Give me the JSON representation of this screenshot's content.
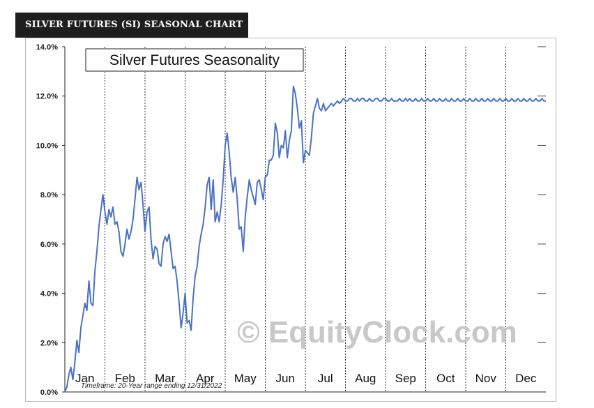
{
  "page": {
    "header": "SILVER FUTURES (SI) SEASONAL CHART"
  },
  "chart_data": {
    "type": "line",
    "title": "Silver Futures Seasonality",
    "watermark": "© EquityClock.com",
    "footnote": "Timeframe: 20-Year range ending 12/31/2022",
    "xlabel": "",
    "ylabel": "",
    "ylim": [
      0,
      14
    ],
    "yticks": [
      "0.0%",
      "2.0%",
      "4.0%",
      "6.0%",
      "8.0%",
      "10.0%",
      "12.0%",
      "14.0%"
    ],
    "months": [
      "Jan",
      "Feb",
      "Mar",
      "Apr",
      "May",
      "Jun",
      "Jul",
      "Aug",
      "Sep",
      "Oct",
      "Nov",
      "Dec"
    ],
    "grid": "vertical dashed at month boundaries",
    "line_color": "#4a72c4",
    "series": [
      {
        "x": [
          0.0,
          0.05,
          0.1,
          0.15,
          0.2,
          0.25,
          0.3,
          0.35,
          0.4,
          0.45,
          0.5,
          0.55,
          0.6,
          0.65,
          0.7,
          0.75,
          0.8,
          0.85,
          0.9,
          0.95,
          1.0,
          1.05,
          1.1,
          1.15,
          1.2,
          1.25,
          1.3,
          1.35,
          1.4,
          1.45,
          1.5,
          1.55,
          1.6,
          1.65,
          1.7,
          1.75,
          1.8,
          1.85,
          1.9,
          1.95,
          2.0,
          2.05,
          2.1,
          2.15,
          2.2,
          2.25,
          2.3,
          2.35,
          2.4,
          2.45,
          2.5,
          2.55,
          2.6,
          2.65,
          2.7,
          2.75,
          2.8,
          2.85,
          2.9,
          2.95,
          3.0,
          3.05,
          3.1,
          3.15,
          3.2,
          3.25,
          3.3,
          3.35,
          3.4,
          3.45,
          3.5,
          3.55,
          3.6,
          3.65,
          3.7,
          3.75,
          3.8,
          3.85,
          3.9,
          3.95,
          4.0,
          4.05,
          4.1,
          4.15,
          4.2,
          4.25,
          4.3,
          4.35,
          4.4,
          4.45,
          4.5,
          4.55,
          4.6,
          4.65,
          4.7,
          4.75,
          4.8,
          4.85,
          4.9,
          4.95,
          5.0,
          5.05,
          5.1,
          5.15,
          5.2,
          5.25,
          5.3,
          5.35,
          5.4,
          5.45,
          5.5,
          5.55,
          5.6,
          5.65,
          5.7,
          5.75,
          5.8,
          5.85,
          5.9,
          5.95,
          6.0,
          6.05,
          6.1,
          6.15,
          6.2,
          6.25,
          6.3,
          6.35,
          6.4,
          6.45,
          6.5,
          6.55,
          6.6,
          6.65,
          6.7,
          6.75,
          6.8,
          6.85,
          6.9,
          6.95,
          7.0,
          7.05,
          7.1,
          7.15,
          7.2,
          7.25,
          7.3,
          7.35,
          7.4,
          7.45,
          7.5,
          7.55,
          7.6,
          7.65,
          7.7,
          7.75,
          7.8,
          7.85,
          7.9,
          7.95,
          8.0,
          8.05,
          8.1,
          8.15,
          8.2,
          8.25,
          8.3,
          8.35,
          8.4,
          8.45,
          8.5,
          8.55,
          8.6,
          8.65,
          8.7,
          8.75,
          8.8,
          8.85,
          8.9,
          8.95,
          9.0,
          9.05,
          9.1,
          9.15,
          9.2,
          9.25,
          9.3,
          9.35,
          9.4,
          9.45,
          9.5,
          9.55,
          9.6,
          9.65,
          9.7,
          9.75,
          9.8,
          9.85,
          9.9,
          9.95,
          10.0,
          10.05,
          10.1,
          10.15,
          10.2,
          10.25,
          10.3,
          10.35,
          10.4,
          10.45,
          10.5,
          10.55,
          10.6,
          10.65,
          10.7,
          10.75,
          10.8,
          10.85,
          10.9,
          10.95,
          11.0,
          11.05,
          11.1,
          11.15,
          11.2,
          11.25,
          11.3,
          11.35,
          11.4,
          11.45,
          11.5,
          11.55,
          11.6,
          11.65,
          11.7,
          11.75,
          11.8,
          11.85,
          11.9,
          11.95,
          12.0
        ],
        "values": [
          0.0,
          0.2,
          0.7,
          1.0,
          0.5,
          1.2,
          2.1,
          1.6,
          2.6,
          3.1,
          3.6,
          3.3,
          4.5,
          3.6,
          3.5,
          4.9,
          5.7,
          6.7,
          7.4,
          8.0,
          7.3,
          6.8,
          7.4,
          7.1,
          7.5,
          6.8,
          6.9,
          6.5,
          5.7,
          5.5,
          6.0,
          6.6,
          6.2,
          6.5,
          7.0,
          7.8,
          8.7,
          8.2,
          8.5,
          7.6,
          6.5,
          7.3,
          7.5,
          6.2,
          5.4,
          5.9,
          5.8,
          5.2,
          5.1,
          6.0,
          6.3,
          6.1,
          6.4,
          5.7,
          5.0,
          5.1,
          4.5,
          3.6,
          2.6,
          3.2,
          4.0,
          2.8,
          2.9,
          2.5,
          3.8,
          4.7,
          5.1,
          5.9,
          6.4,
          6.8,
          7.5,
          8.4,
          8.7,
          7.4,
          8.6,
          6.9,
          7.3,
          6.9,
          7.6,
          8.6,
          10.0,
          10.5,
          9.7,
          8.7,
          8.1,
          8.7,
          7.8,
          6.6,
          6.7,
          5.7,
          7.1,
          7.9,
          8.6,
          8.2,
          7.9,
          7.6,
          8.5,
          8.6,
          8.2,
          7.8,
          8.7,
          8.8,
          9.4,
          9.4,
          9.6,
          10.9,
          10.5,
          9.5,
          10.0,
          9.9,
          10.6,
          9.5,
          10.2,
          10.6,
          12.4,
          12.1,
          11.5,
          10.7,
          11.0,
          9.3,
          9.8,
          9.7,
          9.6,
          10.3,
          11.3,
          11.6,
          11.9,
          11.5,
          11.4,
          11.7,
          11.4,
          11.5,
          11.6,
          11.7,
          11.6,
          11.7,
          11.8,
          11.7,
          11.8,
          11.9,
          11.8,
          11.8,
          11.9,
          11.9,
          11.8,
          11.8,
          11.9,
          11.8,
          11.9,
          11.9,
          11.8,
          11.8,
          11.9,
          11.8,
          11.8,
          11.9,
          11.9,
          11.8,
          11.8,
          11.9,
          11.9,
          11.8,
          11.8,
          11.9,
          11.8,
          11.8,
          11.8,
          11.9,
          11.8,
          11.8,
          11.9,
          11.8,
          11.9,
          11.8,
          11.8,
          11.9,
          11.8,
          11.8,
          11.9,
          11.8,
          11.8,
          11.9,
          11.8,
          11.8,
          11.9,
          11.8,
          11.8,
          11.9,
          11.8,
          11.8,
          11.9,
          11.8,
          11.8,
          11.9,
          11.8,
          11.8,
          11.9,
          11.8,
          11.8,
          11.9,
          11.8,
          11.8,
          11.9,
          11.8,
          11.8,
          11.9,
          11.8,
          11.8,
          11.9,
          11.8,
          11.8,
          11.9,
          11.8,
          11.8,
          11.9,
          11.8,
          11.8,
          11.9,
          11.8,
          11.8,
          11.9,
          11.8,
          11.8,
          11.9,
          11.8,
          11.8,
          11.9,
          11.8,
          11.8,
          11.9,
          11.8,
          11.8,
          11.9,
          11.8,
          11.8,
          11.9,
          11.8,
          11.8,
          11.9,
          11.8,
          11.8
        ]
      }
    ]
  }
}
